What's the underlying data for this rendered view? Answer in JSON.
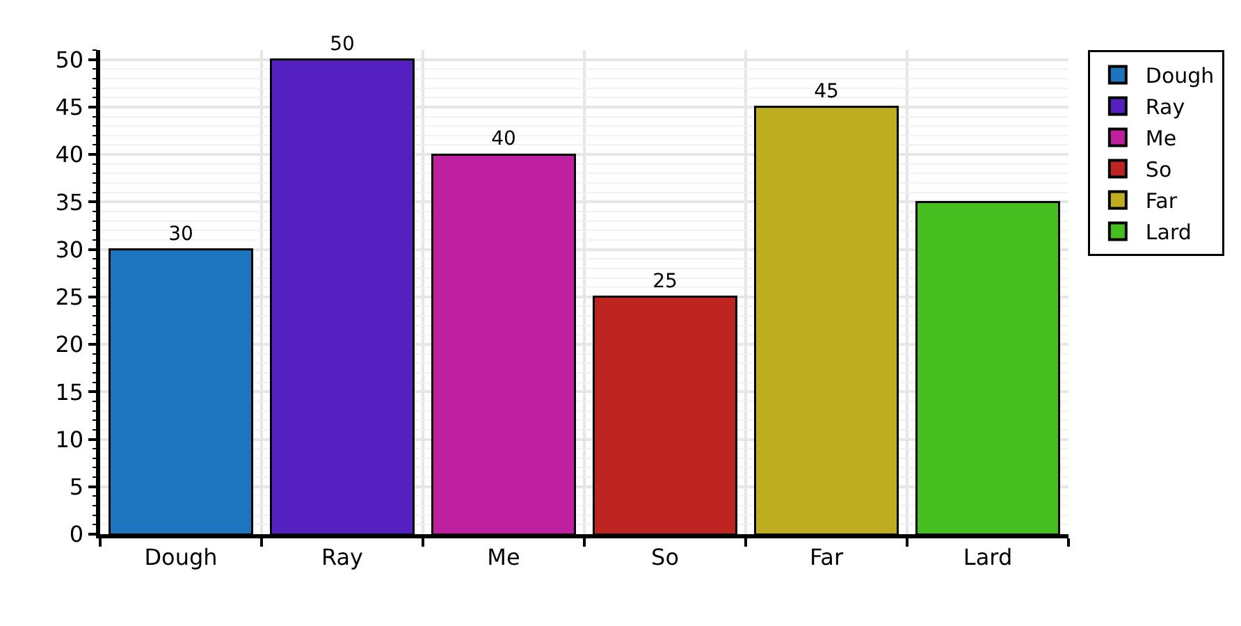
{
  "chart_data": {
    "type": "bar",
    "stacked": true,
    "categories": [
      "Dough",
      "Ray",
      "Me",
      "So",
      "Far",
      "Lard"
    ],
    "series": [
      {
        "name": "Dough",
        "color": "#1f74c0",
        "values": [
          30,
          null,
          null,
          null,
          null,
          null
        ],
        "value_labels": [
          "30",
          null,
          null,
          null,
          null,
          null
        ]
      },
      {
        "name": "Ray",
        "color": "#5420bf",
        "values": [
          null,
          50,
          null,
          null,
          null,
          null
        ],
        "value_labels": [
          null,
          "50",
          null,
          null,
          null,
          null
        ]
      },
      {
        "name": "Me",
        "color": "#be209f",
        "values": [
          null,
          null,
          40,
          null,
          null,
          null
        ],
        "value_labels": [
          null,
          null,
          "40",
          null,
          null,
          null
        ]
      },
      {
        "name": "So",
        "color": "#be2520",
        "values": [
          null,
          null,
          null,
          25,
          null,
          null
        ],
        "value_labels": [
          null,
          null,
          null,
          "25",
          null,
          null
        ]
      },
      {
        "name": "Far",
        "color": "#bfad20",
        "values": [
          null,
          null,
          null,
          null,
          45,
          null
        ],
        "value_labels": [
          null,
          null,
          null,
          null,
          "45",
          null
        ]
      },
      {
        "name": "Lard",
        "color": "#45be20",
        "values": [
          null,
          null,
          null,
          null,
          null,
          35
        ]
      }
    ],
    "ylim": [
      0,
      51
    ],
    "yticks": [
      0,
      5,
      10,
      15,
      20,
      25,
      30,
      35,
      40,
      45,
      50
    ],
    "grid": true,
    "legend": "top right"
  }
}
